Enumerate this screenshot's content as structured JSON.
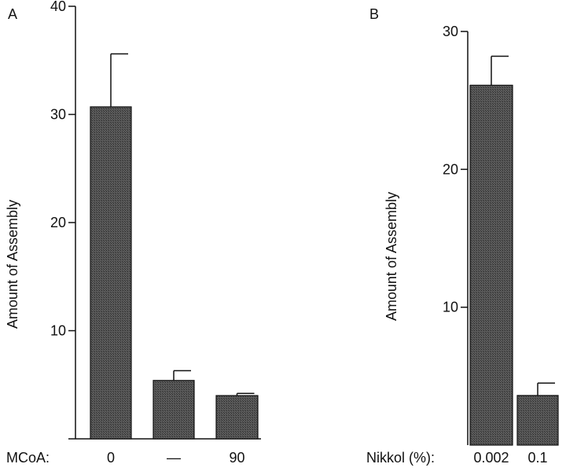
{
  "colors": {
    "bar_fill": "#4a4a4a",
    "axis": "#111111",
    "text": "#111111"
  },
  "chart_data": [
    {
      "panel_label": "A",
      "type": "bar",
      "categories": [
        "0",
        "—",
        "90"
      ],
      "values": [
        30.7,
        5.4,
        4.0
      ],
      "errors": [
        4.9,
        0.9,
        0.2
      ],
      "ylabel": "Amount of Assembly",
      "category_axis_label": "MCoA:",
      "ylim": [
        0,
        40
      ],
      "yticks": [
        10,
        20,
        30,
        40
      ],
      "grid": false,
      "legend": "none"
    },
    {
      "panel_label": "B",
      "type": "bar",
      "categories": [
        "0.002",
        "0.1"
      ],
      "values": [
        26.1,
        3.6
      ],
      "errors": [
        2.1,
        0.9
      ],
      "ylabel": "Amount of Assembly",
      "category_axis_label": "Nikkol (%):",
      "ylim": [
        0,
        30
      ],
      "yticks": [
        10,
        20,
        30
      ],
      "grid": false,
      "legend": "none"
    }
  ]
}
